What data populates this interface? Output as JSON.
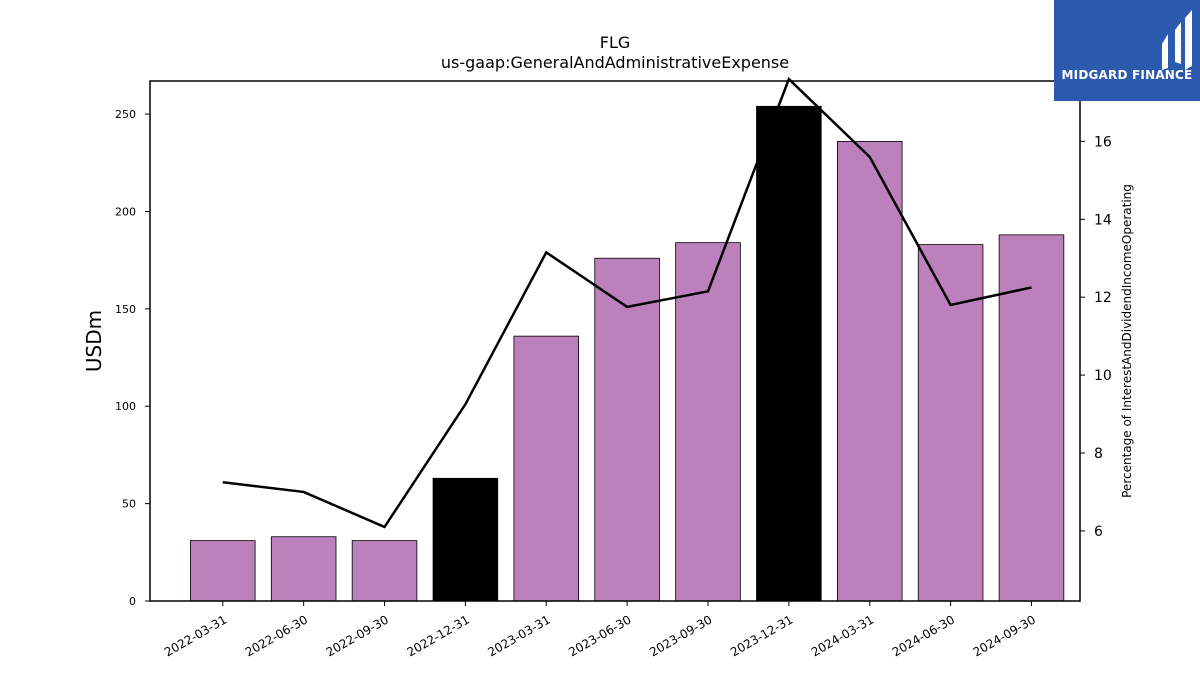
{
  "chart_data": {
    "type": "bar",
    "title": "FLG",
    "subtitle": "us-gaap:GeneralAndAdministrativeExpense",
    "ylabel": "USDm",
    "y2label": "Percentage of InterestAndDividendIncomeOperating",
    "categories": [
      "2022-03-31",
      "2022-06-30",
      "2022-09-30",
      "2022-12-31",
      "2023-03-31",
      "2023-06-30",
      "2023-09-30",
      "2023-12-31",
      "2024-03-31",
      "2024-06-30",
      "2024-09-30"
    ],
    "series": [
      {
        "values": [
          31,
          33,
          31,
          63,
          136,
          176,
          184,
          254,
          236,
          183,
          188
        ],
        "highlighted": [
          false,
          false,
          false,
          true,
          false,
          false,
          false,
          true,
          false,
          false,
          false
        ],
        "color": "#bc80bd",
        "highlight_color": "#000000",
        "axis": "left"
      },
      {
        "values": [
          7.25,
          7.0,
          6.1,
          9.25,
          13.15,
          11.75,
          12.15,
          17.6,
          15.6,
          11.8,
          12.25
        ],
        "color": "#000000",
        "axis": "right"
      }
    ],
    "ylim": [
      0,
      267
    ],
    "yticks": [
      0,
      50,
      100,
      150,
      200,
      250
    ],
    "y2lim": [
      4.2,
      17.55
    ],
    "y2ticks": [
      6,
      8,
      10,
      12,
      14,
      16
    ],
    "grid": false,
    "legend": "none"
  },
  "logo": {
    "text": "MIDGARD FINANCE",
    "color": "#2b5aae"
  }
}
